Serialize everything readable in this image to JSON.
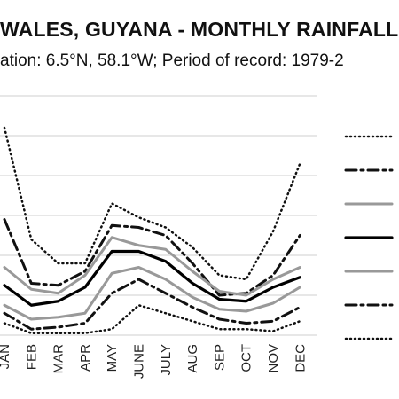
{
  "header": {
    "title": "WALES, GUYANA - MONTHLY RAINFALL",
    "subtitle": "ation: 6.5°N, 58.1°W; Period of record: 1979-2"
  },
  "chart_data": {
    "type": "line",
    "categories": [
      "JAN",
      "FEB",
      "MAR",
      "APR",
      "MAY",
      "JUNE",
      "JULY",
      "AUG",
      "SEP",
      "OCT",
      "NOV",
      "DEC"
    ],
    "ylim": [
      0,
      6
    ],
    "grid": true,
    "legend_position": "right",
    "series": [
      {
        "style": "dotted",
        "color": "#111111",
        "width": 2.5,
        "dash": "1,4",
        "values": [
          5.2,
          2.4,
          1.8,
          1.8,
          3.3,
          2.95,
          2.7,
          2.2,
          1.5,
          1.4,
          2.6,
          4.3
        ]
      },
      {
        "style": "dash-dot",
        "color": "#111111",
        "width": 3,
        "dash": "12,5,3,5",
        "values": [
          2.9,
          1.3,
          1.25,
          1.6,
          2.75,
          2.7,
          2.5,
          1.8,
          1.0,
          1.05,
          1.5,
          2.5
        ]
      },
      {
        "style": "solid",
        "color": "#999999",
        "width": 3,
        "dash": "",
        "values": [
          1.7,
          1.15,
          1.05,
          1.5,
          2.45,
          2.25,
          2.15,
          1.6,
          1.1,
          1.0,
          1.4,
          1.7
        ]
      },
      {
        "style": "solid",
        "color": "#000000",
        "width": 3.2,
        "dash": "",
        "values": [
          1.25,
          0.75,
          0.85,
          1.2,
          2.1,
          2.1,
          1.85,
          1.3,
          0.9,
          0.85,
          1.2,
          1.45
        ]
      },
      {
        "style": "solid",
        "color": "#999999",
        "width": 3,
        "dash": "",
        "values": [
          0.75,
          0.4,
          0.45,
          0.55,
          1.55,
          1.7,
          1.4,
          0.95,
          0.65,
          0.6,
          0.8,
          1.2
        ]
      },
      {
        "style": "dash-dot",
        "color": "#111111",
        "width": 3,
        "dash": "12,5,3,5",
        "values": [
          0.55,
          0.15,
          0.2,
          0.3,
          1.05,
          1.4,
          1.05,
          0.7,
          0.4,
          0.3,
          0.35,
          0.7
        ]
      },
      {
        "style": "dotted",
        "color": "#111111",
        "width": 2.5,
        "dash": "1,4",
        "values": [
          0.3,
          0.05,
          0.05,
          0.05,
          0.15,
          0.75,
          0.55,
          0.35,
          0.15,
          0.15,
          0.1,
          0.35
        ]
      }
    ]
  }
}
